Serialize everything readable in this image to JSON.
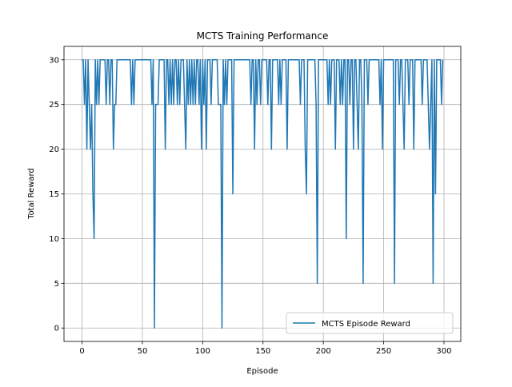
{
  "chart_data": {
    "type": "line",
    "title": "MCTS Training Performance",
    "x_label": "Episode",
    "y_label": "Total Reward",
    "x": [
      0,
      1,
      2,
      3,
      4,
      5,
      6,
      7,
      8,
      9,
      10,
      11,
      12,
      13,
      14,
      15,
      16,
      17,
      18,
      19,
      20,
      21,
      22,
      23,
      24,
      25,
      26,
      27,
      28,
      29,
      30,
      31,
      32,
      33,
      34,
      35,
      36,
      37,
      38,
      39,
      40,
      41,
      42,
      43,
      44,
      45,
      46,
      47,
      48,
      49,
      50,
      51,
      52,
      53,
      54,
      55,
      56,
      57,
      58,
      59,
      60,
      61,
      62,
      63,
      64,
      65,
      66,
      67,
      68,
      69,
      70,
      71,
      72,
      73,
      74,
      75,
      76,
      77,
      78,
      79,
      80,
      81,
      82,
      83,
      84,
      85,
      86,
      87,
      88,
      89,
      90,
      91,
      92,
      93,
      94,
      95,
      96,
      97,
      98,
      99,
      100,
      101,
      102,
      103,
      104,
      105,
      106,
      107,
      108,
      109,
      110,
      111,
      112,
      113,
      114,
      115,
      116,
      117,
      118,
      119,
      120,
      121,
      122,
      123,
      124,
      125,
      126,
      127,
      128,
      129,
      130,
      131,
      132,
      133,
      134,
      135,
      136,
      137,
      138,
      139,
      140,
      141,
      142,
      143,
      144,
      145,
      146,
      147,
      148,
      149,
      150,
      151,
      152,
      153,
      154,
      155,
      156,
      157,
      158,
      159,
      160,
      161,
      162,
      163,
      164,
      165,
      166,
      167,
      168,
      169,
      170,
      171,
      172,
      173,
      174,
      175,
      176,
      177,
      178,
      179,
      180,
      181,
      182,
      183,
      184,
      185,
      186,
      187,
      188,
      189,
      190,
      191,
      192,
      193,
      194,
      195,
      196,
      197,
      198,
      199,
      200,
      201,
      202,
      203,
      204,
      205,
      206,
      207,
      208,
      209,
      210,
      211,
      212,
      213,
      214,
      215,
      216,
      217,
      218,
      219,
      220,
      221,
      222,
      223,
      224,
      225,
      226,
      227,
      228,
      229,
      230,
      231,
      232,
      233,
      234,
      235,
      236,
      237,
      238,
      239,
      240,
      241,
      242,
      243,
      244,
      245,
      246,
      247,
      248,
      249,
      250,
      251,
      252,
      253,
      254,
      255,
      256,
      257,
      258,
      259,
      260,
      261,
      262,
      263,
      264,
      265,
      266,
      267,
      268,
      269,
      270,
      271,
      272,
      273,
      274,
      275,
      276,
      277,
      278,
      279,
      280,
      281,
      282,
      283,
      284,
      285,
      286,
      287,
      288,
      289,
      290,
      291,
      292,
      293,
      294,
      295,
      296,
      297,
      298,
      299
    ],
    "series": [
      {
        "name": "MCTS Episode Reward",
        "color": "#1f77b4",
        "values": [
          30,
          30,
          25,
          30,
          20,
          30,
          25,
          20,
          25,
          15,
          10,
          30,
          25,
          30,
          25,
          30,
          30,
          30,
          30,
          30,
          25,
          30,
          30,
          25,
          30,
          30,
          20,
          25,
          25,
          30,
          30,
          30,
          30,
          30,
          30,
          30,
          30,
          30,
          30,
          30,
          30,
          25,
          30,
          25,
          30,
          30,
          30,
          30,
          30,
          30,
          30,
          30,
          30,
          30,
          30,
          30,
          30,
          30,
          25,
          30,
          0,
          25,
          25,
          25,
          30,
          30,
          30,
          30,
          30,
          20,
          30,
          30,
          25,
          30,
          25,
          30,
          25,
          30,
          30,
          25,
          30,
          25,
          30,
          30,
          30,
          25,
          20,
          30,
          25,
          30,
          25,
          30,
          25,
          30,
          25,
          30,
          30,
          25,
          30,
          20,
          30,
          25,
          30,
          20,
          30,
          30,
          30,
          25,
          30,
          30,
          30,
          30,
          30,
          25,
          25,
          25,
          0,
          30,
          25,
          30,
          25,
          30,
          30,
          30,
          30,
          15,
          30,
          30,
          30,
          30,
          30,
          30,
          30,
          30,
          30,
          30,
          30,
          30,
          30,
          30,
          25,
          30,
          30,
          20,
          30,
          25,
          30,
          30,
          25,
          30,
          30,
          30,
          30,
          30,
          25,
          30,
          30,
          20,
          30,
          30,
          30,
          30,
          30,
          25,
          30,
          25,
          30,
          30,
          30,
          30,
          20,
          30,
          30,
          30,
          30,
          30,
          30,
          30,
          30,
          30,
          30,
          25,
          30,
          30,
          30,
          20,
          15,
          30,
          30,
          30,
          30,
          30,
          30,
          30,
          25,
          5,
          30,
          30,
          30,
          30,
          30,
          30,
          30,
          30,
          25,
          30,
          25,
          30,
          30,
          30,
          20,
          30,
          30,
          30,
          25,
          30,
          25,
          30,
          30,
          10,
          30,
          30,
          25,
          30,
          30,
          20,
          30,
          30,
          25,
          20,
          30,
          30,
          25,
          5,
          30,
          30,
          30,
          25,
          30,
          30,
          30,
          30,
          30,
          30,
          30,
          30,
          30,
          25,
          30,
          20,
          30,
          30,
          30,
          30,
          30,
          30,
          30,
          30,
          30,
          5,
          30,
          30,
          30,
          25,
          30,
          30,
          25,
          20,
          30,
          30,
          30,
          25,
          30,
          30,
          30,
          20,
          30,
          30,
          30,
          30,
          30,
          30,
          25,
          30,
          30,
          30,
          30,
          25,
          20,
          25,
          30,
          5,
          30,
          15,
          30,
          30,
          30,
          30,
          25,
          30
        ]
      }
    ],
    "xlim": [
      -14.95,
      313.95
    ],
    "ylim": [
      -1.5,
      31.5
    ],
    "xticks": [
      0,
      50,
      100,
      150,
      200,
      250,
      300
    ],
    "yticks": [
      0,
      5,
      10,
      15,
      20,
      25,
      30
    ],
    "grid": true,
    "legend": "lower right"
  }
}
